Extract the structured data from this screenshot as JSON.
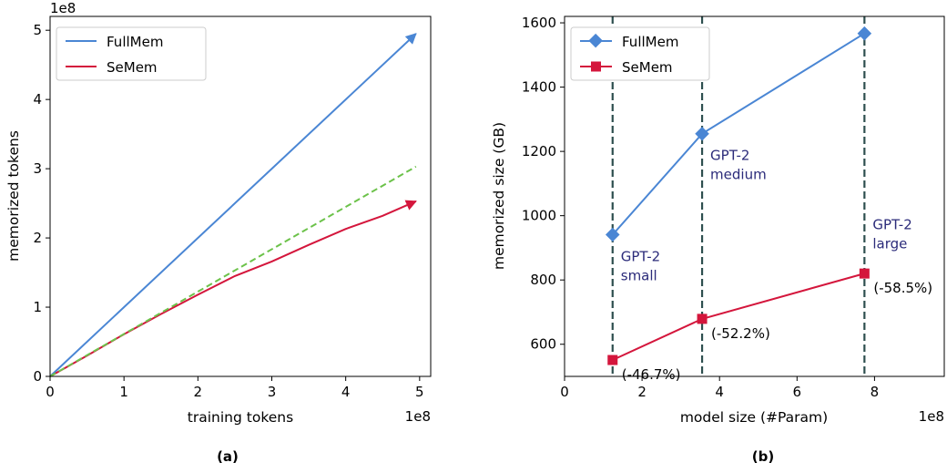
{
  "chart_data": [
    {
      "type": "line",
      "panel_label": "(a)",
      "xlabel": "training tokens",
      "ylabel": "memorized tokens",
      "x_offset_label": "1e8",
      "y_offset_label": "1e8",
      "xlim": [
        0,
        5.15
      ],
      "ylim": [
        0,
        5.2
      ],
      "xticks": [
        0,
        1,
        2,
        3,
        4,
        5
      ],
      "yticks": [
        0,
        1,
        2,
        3,
        4,
        5
      ],
      "grid": false,
      "legend_position": "upper-left",
      "series": [
        {
          "name": "FullMem",
          "color": "#4a86d4",
          "style": "solid-arrow",
          "x": [
            0,
            4.95
          ],
          "y": [
            0,
            4.95
          ]
        },
        {
          "name": "SeMem",
          "color": "#d4163c",
          "style": "solid-arrow",
          "x": [
            0,
            0.5,
            1.0,
            1.5,
            2.0,
            2.5,
            3.0,
            3.5,
            4.0,
            4.5,
            4.95
          ],
          "y": [
            0,
            0.3,
            0.61,
            0.9,
            1.18,
            1.45,
            1.66,
            1.9,
            2.13,
            2.32,
            2.53
          ]
        },
        {
          "name": "",
          "color": "#6cc24a",
          "style": "dashed",
          "x": [
            0,
            4.95
          ],
          "y": [
            0,
            3.03
          ]
        }
      ]
    },
    {
      "type": "line",
      "panel_label": "(b)",
      "xlabel": "model size (#Param)",
      "ylabel": "memorized size (GB)",
      "x_offset_label": "1e8",
      "xlim": [
        0,
        9.8
      ],
      "ylim": [
        500,
        1620
      ],
      "xticks": [
        0,
        2,
        4,
        6,
        8
      ],
      "yticks": [
        600,
        800,
        1000,
        1200,
        1400,
        1600
      ],
      "grid": false,
      "legend_position": "upper-left",
      "vlines": [
        1.24,
        3.55,
        7.74
      ],
      "series": [
        {
          "name": "FullMem",
          "color": "#4a86d4",
          "marker": "diamond",
          "x": [
            1.24,
            3.55,
            7.74
          ],
          "y": [
            941,
            1255,
            1567
          ]
        },
        {
          "name": "SeMem",
          "color": "#d4163c",
          "marker": "square",
          "x": [
            1.24,
            3.55,
            7.74
          ],
          "y": [
            551,
            679,
            820
          ]
        }
      ],
      "point_annotations": [
        "(-46.7%)",
        "(-52.2%)",
        "(-58.5%)"
      ],
      "model_labels": [
        [
          "GPT-2",
          "small"
        ],
        [
          "GPT-2",
          "medium"
        ],
        [
          "GPT-2",
          "large"
        ]
      ]
    }
  ]
}
